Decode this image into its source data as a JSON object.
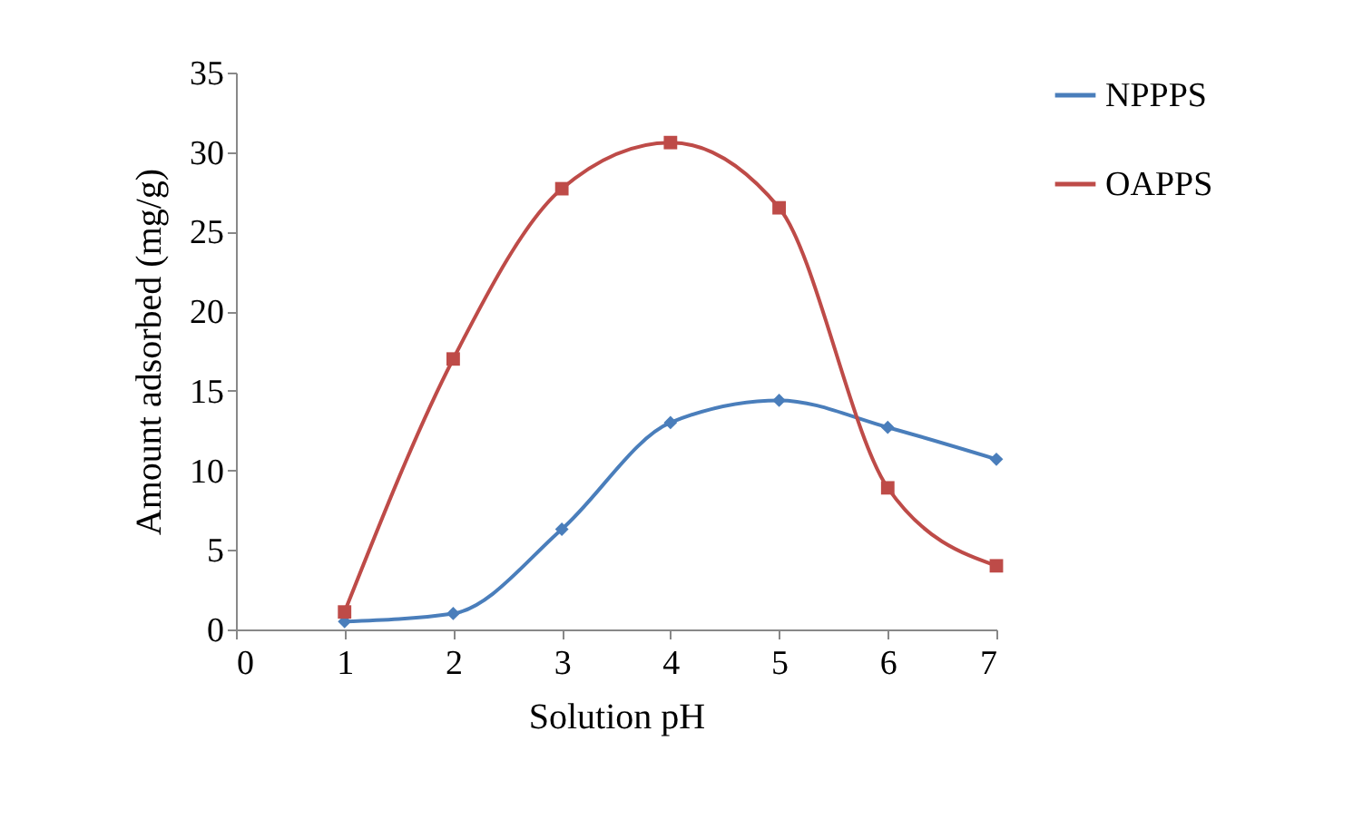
{
  "chart_data": {
    "type": "line",
    "xlabel": "Solution pH",
    "ylabel": "Amount adsorbed (mg/g)",
    "x": [
      1,
      2,
      3,
      4,
      5,
      6,
      7
    ],
    "series": [
      {
        "name": "NPPPS",
        "color": "#4a7ebb",
        "marker": "diamond",
        "values": [
          0.5,
          1.0,
          6.3,
          13.0,
          14.4,
          12.7,
          10.7
        ]
      },
      {
        "name": "OAPPS",
        "color": "#be4b48",
        "marker": "square",
        "values": [
          1.1,
          17.0,
          27.7,
          30.6,
          26.5,
          8.9,
          4.0
        ]
      }
    ],
    "xlim": [
      0,
      7
    ],
    "xticks": [
      0,
      1,
      2,
      3,
      4,
      5,
      6,
      7
    ],
    "ylim": [
      0,
      35
    ],
    "yticks": [
      0,
      5,
      10,
      15,
      20,
      25,
      30,
      35
    ],
    "legend": "right",
    "grid": false,
    "line_style": "solid"
  }
}
